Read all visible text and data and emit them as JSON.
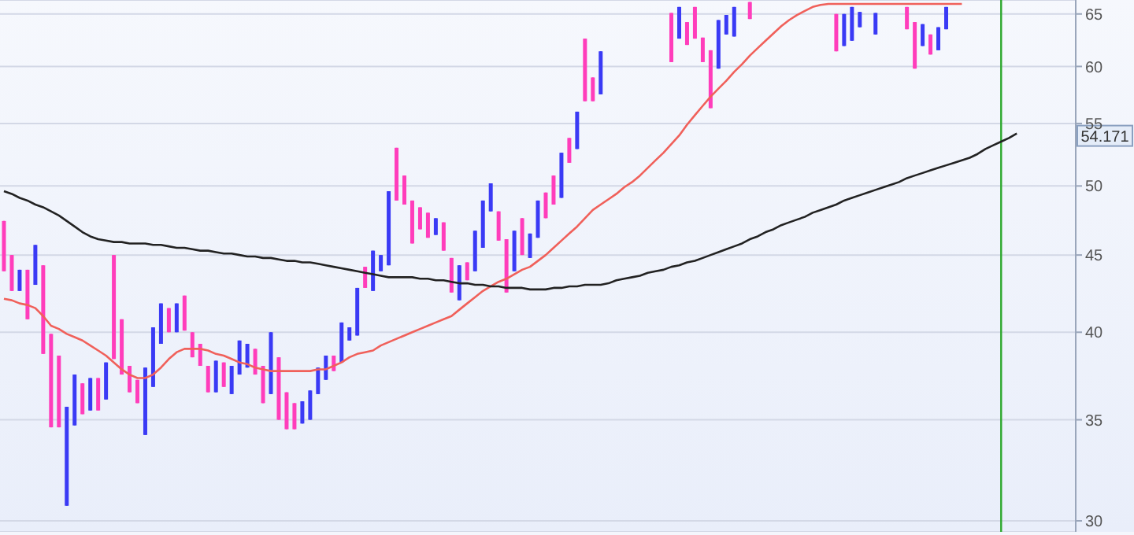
{
  "chart_data": {
    "type": "candlestick",
    "categories": [
      null,
      null,
      null,
      null,
      null,
      null,
      null,
      null,
      null,
      null,
      null,
      null,
      null,
      null,
      null,
      null,
      null,
      null,
      null,
      null,
      null,
      null,
      null,
      null,
      null,
      null,
      null,
      null,
      null,
      null,
      null,
      null,
      null,
      null,
      null,
      null,
      null,
      null,
      null,
      null,
      null,
      null,
      null,
      null,
      null,
      null,
      null,
      null,
      null,
      null,
      null,
      null,
      null,
      null,
      null,
      null,
      null,
      null,
      null,
      null,
      null,
      null,
      null,
      null,
      null,
      null,
      null,
      null,
      null,
      null,
      null,
      null,
      null,
      null,
      null,
      null,
      null,
      null,
      null,
      null,
      null,
      null,
      null,
      null,
      null,
      null,
      null,
      null,
      null,
      null,
      null,
      null,
      null,
      null,
      null,
      null,
      null,
      null,
      null,
      null,
      null,
      null,
      null,
      null,
      null,
      null,
      null,
      null,
      null,
      null,
      null,
      null,
      null,
      null,
      null,
      null,
      null,
      null,
      null,
      null,
      null,
      null,
      null,
      null,
      null,
      null,
      null,
      null,
      null,
      null,
      null,
      null,
      null,
      null,
      null,
      null,
      null
    ],
    "ohlc": [
      [
        47.4,
        47.4,
        43.9,
        43.9
      ],
      [
        45.0,
        45.0,
        42.6,
        42.6
      ],
      [
        42.6,
        44.0,
        42.6,
        44.0
      ],
      [
        44.0,
        44.0,
        40.8,
        40.8
      ],
      [
        43.0,
        45.7,
        43.0,
        45.7
      ],
      [
        44.3,
        44.3,
        38.7,
        38.7
      ],
      [
        39.9,
        39.9,
        34.6,
        34.6
      ],
      [
        38.6,
        38.6,
        34.6,
        34.6
      ],
      [
        30.7,
        35.7,
        30.7,
        35.7
      ],
      [
        34.7,
        37.5,
        34.7,
        37.5
      ],
      [
        37.0,
        37.0,
        35.3,
        35.3
      ],
      [
        35.5,
        37.3,
        35.5,
        37.3
      ],
      [
        37.3,
        37.3,
        35.5,
        35.5
      ],
      [
        36.1,
        38.2,
        36.1,
        38.2
      ],
      [
        45.0,
        45.0,
        38.4,
        38.4
      ],
      [
        40.8,
        40.8,
        37.5,
        37.5
      ],
      [
        38.0,
        38.0,
        36.5,
        36.5
      ],
      [
        37.2,
        37.2,
        35.9,
        35.9
      ],
      [
        34.2,
        37.9,
        34.2,
        37.9
      ],
      [
        36.8,
        40.3,
        36.8,
        40.3
      ],
      [
        39.3,
        41.8,
        39.3,
        41.8
      ],
      [
        41.5,
        41.5,
        40.0,
        40.0
      ],
      [
        40.0,
        41.8,
        40.0,
        41.8
      ],
      [
        42.3,
        42.3,
        40.1,
        40.1
      ],
      [
        40.0,
        40.0,
        38.5,
        38.5
      ],
      [
        39.3,
        39.3,
        38.0,
        38.0
      ],
      [
        38.0,
        38.0,
        36.5,
        36.5
      ],
      [
        36.5,
        38.3,
        36.5,
        38.3
      ],
      [
        38.2,
        38.2,
        36.8,
        36.8
      ],
      [
        36.4,
        38.0,
        36.4,
        38.0
      ],
      [
        37.5,
        39.5,
        37.5,
        39.5
      ],
      [
        37.9,
        39.3,
        37.9,
        39.3
      ],
      [
        39.0,
        39.0,
        37.5,
        37.5
      ],
      [
        38.0,
        38.0,
        35.9,
        35.9
      ],
      [
        36.4,
        40.0,
        36.4,
        40.0
      ],
      [
        38.5,
        38.5,
        35.0,
        35.0
      ],
      [
        36.5,
        36.5,
        34.5,
        34.5
      ],
      [
        35.9,
        35.9,
        34.5,
        34.5
      ],
      [
        34.8,
        36.0,
        34.8,
        36.0
      ],
      [
        35.0,
        36.6,
        35.0,
        36.6
      ],
      [
        36.4,
        37.9,
        36.4,
        37.9
      ],
      [
        37.2,
        38.6,
        37.2,
        38.6
      ],
      [
        38.6,
        38.6,
        37.7,
        37.7
      ],
      [
        38.2,
        40.6,
        38.2,
        40.6
      ],
      [
        39.5,
        40.3,
        39.5,
        40.3
      ],
      [
        39.8,
        42.8,
        39.8,
        42.8
      ],
      [
        44.2,
        44.2,
        42.8,
        42.8
      ],
      [
        42.6,
        45.3,
        42.6,
        45.3
      ],
      [
        43.9,
        45.0,
        43.9,
        45.0
      ],
      [
        44.3,
        49.6,
        44.3,
        49.6
      ],
      [
        53.0,
        53.0,
        48.9,
        48.9
      ],
      [
        50.8,
        50.8,
        48.6,
        48.6
      ],
      [
        48.9,
        48.9,
        45.8,
        45.8
      ],
      [
        48.4,
        48.4,
        46.8,
        46.8
      ],
      [
        48.0,
        48.0,
        46.2,
        46.2
      ],
      [
        46.4,
        47.6,
        46.4,
        47.6
      ],
      [
        47.3,
        47.3,
        45.3,
        45.3
      ],
      [
        44.8,
        44.8,
        42.5,
        42.5
      ],
      [
        42.0,
        44.3,
        42.0,
        44.3
      ],
      [
        44.5,
        44.5,
        43.3,
        43.3
      ],
      [
        43.9,
        46.7,
        43.9,
        46.7
      ],
      [
        45.5,
        48.9,
        45.5,
        48.9
      ],
      [
        48.1,
        50.2,
        48.1,
        50.2
      ],
      [
        48.1,
        48.1,
        46.0,
        46.0
      ],
      [
        46.1,
        46.1,
        42.5,
        42.5
      ],
      [
        43.9,
        46.7,
        43.9,
        46.7
      ],
      [
        47.6,
        47.6,
        45.0,
        45.0
      ],
      [
        44.8,
        46.5,
        44.8,
        46.5
      ],
      [
        46.2,
        48.9,
        46.2,
        48.9
      ],
      [
        49.5,
        49.5,
        47.6,
        47.6
      ],
      [
        50.8,
        50.8,
        48.6,
        48.6
      ],
      [
        49.1,
        52.6,
        49.1,
        52.6
      ],
      [
        53.8,
        53.8,
        51.8,
        51.8
      ],
      [
        52.9,
        56.0,
        52.9,
        56.0
      ],
      [
        62.6,
        62.6,
        56.9,
        56.9
      ],
      [
        59.0,
        59.0,
        56.9,
        56.9
      ],
      [
        57.5,
        61.4,
        57.5,
        61.4
      ],
      null,
      null,
      null,
      null,
      null,
      null,
      null,
      null,
      [
        65.1,
        65.1,
        60.4,
        60.4
      ],
      [
        62.6,
        65.7,
        62.6,
        65.7
      ],
      [
        64.2,
        64.2,
        62.0,
        62.0
      ],
      [
        65.7,
        65.7,
        62.6,
        62.6
      ],
      [
        62.7,
        62.7,
        60.4,
        60.4
      ],
      [
        61.5,
        61.5,
        56.3,
        56.3
      ],
      [
        59.8,
        64.4,
        59.8,
        64.4
      ],
      [
        63.0,
        64.9,
        63.0,
        64.9
      ],
      [
        62.8,
        65.7,
        62.8,
        65.7
      ],
      null,
      [
        66.2,
        66.2,
        64.5,
        64.5
      ],
      null,
      null,
      null,
      null,
      null,
      null,
      null,
      null,
      null,
      null,
      [
        65.0,
        65.0,
        61.4,
        61.4
      ],
      [
        61.9,
        65.0,
        61.9,
        65.0
      ],
      [
        62.4,
        65.7,
        62.4,
        65.7
      ],
      [
        63.7,
        65.2,
        63.7,
        65.2
      ],
      null,
      [
        63.0,
        65.1,
        63.0,
        65.1
      ],
      null,
      null,
      null,
      [
        65.7,
        65.7,
        63.5,
        63.5
      ],
      [
        64.2,
        64.2,
        59.8,
        59.8
      ],
      [
        61.9,
        64.0,
        61.9,
        64.0
      ],
      [
        63.0,
        63.0,
        61.1,
        61.1
      ],
      [
        61.5,
        63.7,
        61.5,
        63.7
      ],
      [
        63.5,
        65.7,
        63.5,
        65.7
      ],
      null,
      null,
      null,
      null,
      null,
      null,
      null,
      null,
      null,
      null,
      null,
      null,
      null,
      null,
      null,
      null
    ],
    "colors": [
      "#ff3dbb",
      "#ff3dbb",
      "#3a3af5",
      "#ff3dbb",
      "#3a3af5",
      "#ff3dbb",
      "#ff3dbb",
      "#ff3dbb",
      "#3a3af5",
      "#3a3af5",
      "#ff3dbb",
      "#3a3af5",
      "#ff3dbb",
      "#3a3af5",
      "#ff3dbb",
      "#ff3dbb",
      "#ff3dbb",
      "#ff3dbb",
      "#3a3af5",
      "#3a3af5",
      "#3a3af5",
      "#ff3dbb",
      "#3a3af5",
      "#ff3dbb",
      "#ff3dbb",
      "#ff3dbb",
      "#ff3dbb",
      "#3a3af5",
      "#ff3dbb",
      "#3a3af5",
      "#3a3af5",
      "#3a3af5",
      "#ff3dbb",
      "#ff3dbb",
      "#3a3af5",
      "#ff3dbb",
      "#ff3dbb",
      "#ff3dbb",
      "#3a3af5",
      "#3a3af5",
      "#3a3af5",
      "#3a3af5",
      "#ff3dbb",
      "#3a3af5",
      "#3a3af5",
      "#3a3af5",
      "#ff3dbb",
      "#3a3af5",
      "#3a3af5",
      "#3a3af5",
      "#ff3dbb",
      "#ff3dbb",
      "#ff3dbb",
      "#ff3dbb",
      "#ff3dbb",
      "#3a3af5",
      "#ff3dbb",
      "#ff3dbb",
      "#3a3af5",
      "#ff3dbb",
      "#3a3af5",
      "#3a3af5",
      "#3a3af5",
      "#ff3dbb",
      "#ff3dbb",
      "#3a3af5",
      "#ff3dbb",
      "#3a3af5",
      "#3a3af5",
      "#ff3dbb",
      "#ff3dbb",
      "#3a3af5",
      "#ff3dbb",
      "#3a3af5",
      "#ff3dbb",
      "#ff3dbb",
      "#3a3af5",
      null,
      null,
      null,
      null,
      null,
      null,
      null,
      null,
      "#ff3dbb",
      "#3a3af5",
      "#ff3dbb",
      "#ff3dbb",
      "#ff3dbb",
      "#ff3dbb",
      "#3a3af5",
      "#3a3af5",
      "#3a3af5",
      null,
      "#ff3dbb",
      null,
      null,
      null,
      null,
      null,
      null,
      null,
      null,
      null,
      null,
      "#ff3dbb",
      "#3a3af5",
      "#3a3af5",
      "#3a3af5",
      null,
      "#3a3af5",
      null,
      null,
      null,
      "#ff3dbb",
      "#ff3dbb",
      "#3a3af5",
      "#ff3dbb",
      "#3a3af5",
      "#3a3af5",
      null,
      null,
      null,
      null,
      null,
      null,
      null,
      null,
      null,
      null,
      null,
      null,
      null,
      null,
      null,
      null
    ],
    "series": [
      {
        "type": "line",
        "color": "#f0605a",
        "values": [
          42.1,
          42.0,
          41.8,
          41.7,
          41.5,
          41.0,
          40.4,
          40.2,
          39.9,
          39.7,
          39.5,
          39.2,
          38.9,
          38.6,
          38.2,
          37.8,
          37.5,
          37.3,
          37.3,
          37.5,
          37.9,
          38.4,
          38.8,
          39.0,
          39.0,
          39.0,
          38.9,
          38.7,
          38.6,
          38.4,
          38.2,
          38.1,
          37.9,
          37.8,
          37.7,
          37.7,
          37.7,
          37.7,
          37.7,
          37.7,
          37.8,
          37.8,
          38.0,
          38.2,
          38.5,
          38.7,
          38.8,
          38.9,
          39.2,
          39.4,
          39.6,
          39.8,
          40.0,
          40.2,
          40.4,
          40.6,
          40.8,
          41.0,
          41.4,
          41.8,
          42.2,
          42.6,
          42.9,
          43.2,
          43.4,
          43.7,
          44.0,
          44.2,
          44.6,
          45.0,
          45.5,
          46.0,
          46.5,
          47.0,
          47.6,
          48.2,
          48.6,
          49.0,
          49.4,
          49.9,
          50.3,
          50.8,
          51.4,
          52.0,
          52.6,
          53.3,
          54.0,
          54.9,
          55.7,
          56.5,
          57.3,
          58.0,
          58.7,
          59.5,
          60.2,
          61.0,
          61.7,
          62.4,
          63.1,
          63.8,
          64.4,
          64.9,
          65.3,
          65.7,
          65.9,
          66.0,
          66.0,
          66.0,
          66.0,
          66.0,
          66.0,
          66.0,
          66.0,
          66.0,
          66.0,
          66.0,
          66.0,
          66.0,
          66.0,
          66.0,
          66.0,
          66.0,
          66.0,
          null,
          null,
          null,
          null,
          null,
          null,
          null,
          null,
          null,
          null,
          null,
          null,
          null,
          null
        ]
      },
      {
        "type": "line",
        "color": "#222222",
        "values": [
          49.6,
          49.4,
          49.1,
          48.9,
          48.6,
          48.4,
          48.1,
          47.8,
          47.4,
          47.0,
          46.6,
          46.3,
          46.1,
          46.0,
          45.9,
          45.9,
          45.8,
          45.8,
          45.8,
          45.7,
          45.7,
          45.6,
          45.5,
          45.5,
          45.4,
          45.3,
          45.3,
          45.2,
          45.1,
          45.1,
          45.0,
          44.9,
          44.9,
          44.8,
          44.8,
          44.7,
          44.6,
          44.6,
          44.5,
          44.5,
          44.4,
          44.3,
          44.2,
          44.1,
          44.0,
          43.9,
          43.8,
          43.7,
          43.6,
          43.5,
          43.5,
          43.5,
          43.5,
          43.4,
          43.4,
          43.3,
          43.3,
          43.2,
          43.1,
          43.1,
          43.0,
          43.0,
          42.9,
          42.9,
          42.8,
          42.8,
          42.8,
          42.7,
          42.7,
          42.7,
          42.8,
          42.8,
          42.9,
          42.9,
          43.0,
          43.0,
          43.0,
          43.1,
          43.3,
          43.4,
          43.5,
          43.6,
          43.8,
          43.9,
          44.0,
          44.2,
          44.3,
          44.5,
          44.6,
          44.8,
          45.0,
          45.2,
          45.4,
          45.6,
          45.8,
          46.1,
          46.3,
          46.6,
          46.8,
          47.1,
          47.3,
          47.5,
          47.7,
          48.0,
          48.2,
          48.4,
          48.6,
          48.9,
          49.1,
          49.3,
          49.5,
          49.7,
          49.9,
          50.1,
          50.3,
          50.6,
          50.8,
          51.0,
          51.2,
          51.4,
          51.6,
          51.8,
          52.0,
          52.2,
          52.5,
          52.9,
          53.2,
          53.5,
          53.8,
          54.171,
          null,
          null,
          null,
          null,
          null,
          null,
          null
        ]
      }
    ],
    "ylim": [
      29.5,
      66.4
    ],
    "yticks": [
      30,
      35,
      40,
      45,
      50,
      55,
      60,
      65
    ],
    "log": true,
    "grid": "y",
    "marker": "none",
    "annotations": [
      {
        "text": "54.171",
        "y": 54.171
      }
    ]
  }
}
